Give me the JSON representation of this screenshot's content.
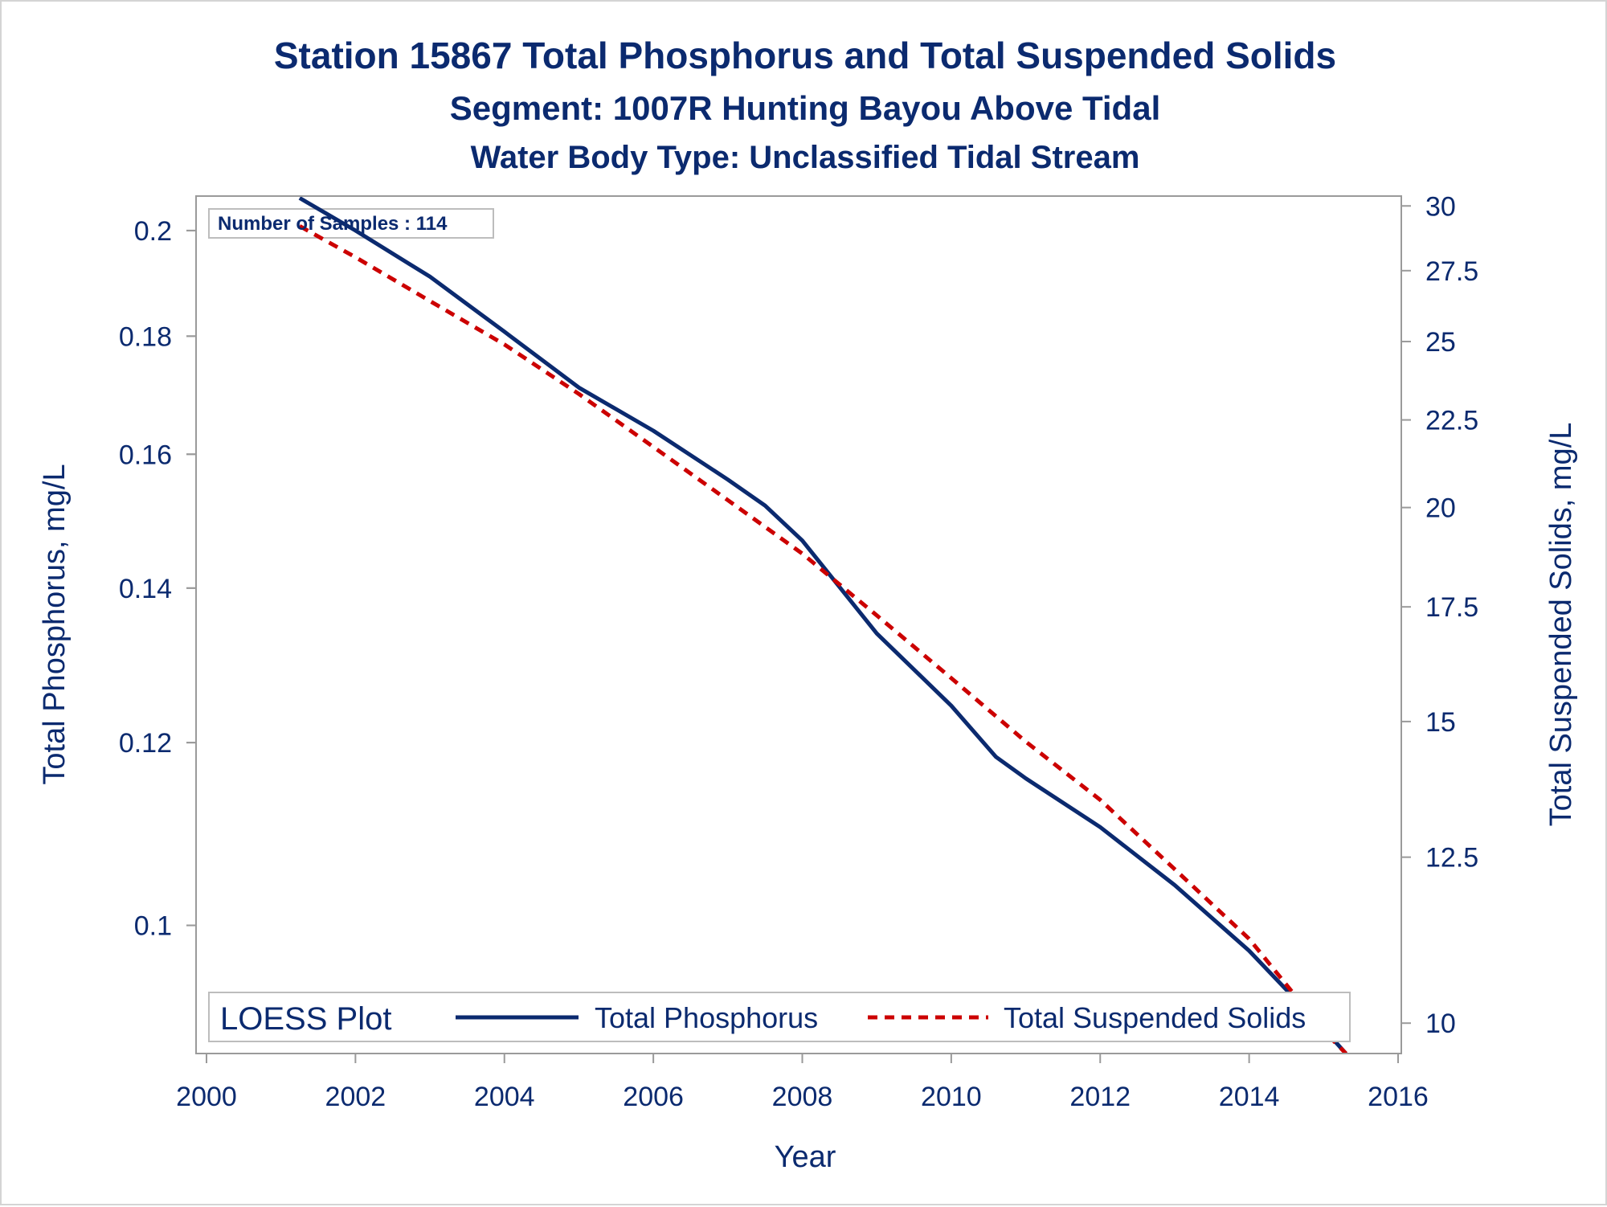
{
  "chart_data": {
    "type": "line",
    "title": "Station 15867  Total Phosphorus and Total Suspended Solids",
    "subtitle": "Segment: 1007R  Hunting Bayou Above Tidal",
    "subtitle2": "Water Body Type: Unclassified Tidal Stream",
    "xlabel": "Year",
    "ylabel_left": "Total Phosphorus, mg/L",
    "ylabel_right": "Total Suspended Solids, mg/L",
    "annotation": "Number of Samples : 114",
    "legend_title": "LOESS Plot",
    "legend_position": "bottom-inside",
    "grid": false,
    "x_ticks": [
      "2000",
      "2002",
      "2004",
      "2006",
      "2008",
      "2010",
      "2012",
      "2014",
      "2016"
    ],
    "y_left_ticks": [
      "0.1",
      "0.12",
      "0.14",
      "0.16",
      "0.18",
      "0.2"
    ],
    "y_right_ticks": [
      "10",
      "12.5",
      "15",
      "17.5",
      "20",
      "22.5",
      "25",
      "27.5",
      "30"
    ],
    "xlim": [
      2000,
      2016
    ],
    "y_left_scale": "log",
    "y_left_lim": [
      0.088,
      0.207
    ],
    "y_right_scale": "log",
    "y_right_lim": [
      9.6,
      30.4
    ],
    "series": [
      {
        "name": "Total Phosphorus",
        "axis": "left",
        "color": "#0b2a6f",
        "style": "solid",
        "x": [
          2001.25,
          2002,
          2003,
          2004,
          2005,
          2006,
          2007,
          2007.5,
          2008,
          2009,
          2010,
          2010.6,
          2011,
          2012,
          2013,
          2014,
          2015,
          2015.3
        ],
        "y": [
          0.2066,
          0.2,
          0.191,
          0.1808,
          0.171,
          0.1638,
          0.156,
          0.152,
          0.1468,
          0.1338,
          0.1245,
          0.1183,
          0.1158,
          0.1103,
          0.1041,
          0.0975,
          0.0902,
          0.088
        ]
      },
      {
        "name": "Total Suspended Solids",
        "axis": "right",
        "color": "#cc0000",
        "style": "dashed",
        "x": [
          2001.25,
          2002,
          2003,
          2004,
          2005,
          2006,
          2007,
          2008,
          2009,
          2010,
          2011,
          2012,
          2013,
          2014,
          2015,
          2015.3
        ],
        "y": [
          29.2,
          28.0,
          26.4,
          24.9,
          23.3,
          21.7,
          20.2,
          18.8,
          17.3,
          15.9,
          14.6,
          13.5,
          12.3,
          11.2,
          9.9,
          9.6
        ]
      }
    ]
  }
}
